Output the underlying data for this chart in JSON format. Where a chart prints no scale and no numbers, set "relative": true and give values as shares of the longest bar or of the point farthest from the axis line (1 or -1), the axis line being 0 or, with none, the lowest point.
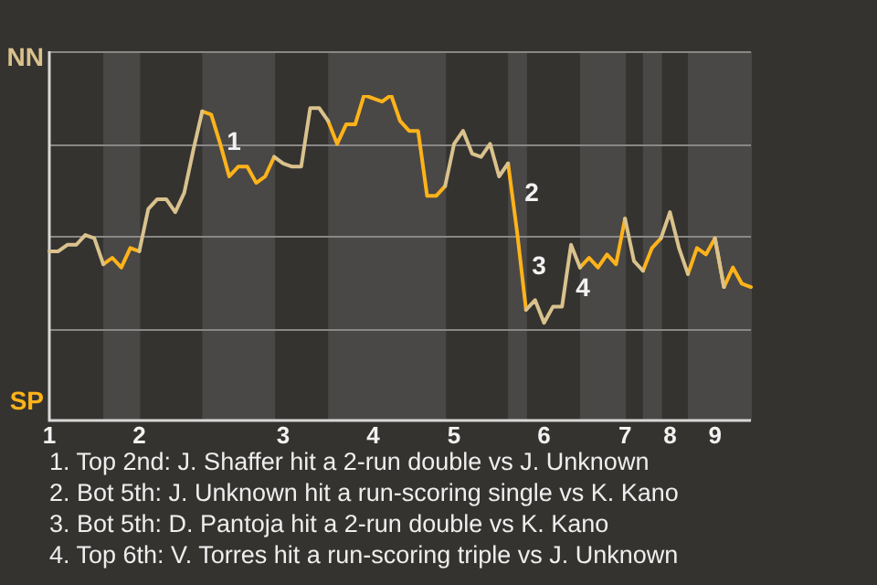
{
  "chart_data": {
    "type": "line",
    "relative": true,
    "categories": [
      "1",
      null,
      null,
      null,
      null,
      null,
      null,
      null,
      null,
      null,
      "2",
      null,
      null,
      null,
      null,
      null,
      null,
      null,
      null,
      null,
      null,
      null,
      null,
      null,
      null,
      null,
      "3",
      null,
      null,
      null,
      null,
      null,
      null,
      null,
      null,
      null,
      "4",
      null,
      null,
      null,
      null,
      null,
      null,
      null,
      null,
      "5",
      null,
      null,
      null,
      null,
      null,
      null,
      null,
      null,
      null,
      "6",
      null,
      null,
      null,
      null,
      null,
      null,
      null,
      null,
      "7",
      null,
      null,
      null,
      null,
      "8",
      null,
      null,
      null,
      null,
      "9",
      null,
      null,
      null,
      null
    ],
    "series": [
      {
        "name": "NN",
        "color": "#d9c28d",
        "values": [
          0.52,
          0.52,
          0.54,
          0.54,
          0.57,
          0.56,
          0.48,
          null,
          null,
          null,
          0.52,
          0.65,
          0.68,
          0.68,
          0.64,
          0.7,
          0.83,
          0.95,
          null,
          null,
          null,
          null,
          null,
          null,
          null,
          0.81,
          0.79,
          0.78,
          0.78,
          0.96,
          0.96,
          0.92,
          null,
          null,
          null,
          null,
          null,
          null,
          null,
          null,
          null,
          null,
          null,
          null,
          0.72,
          0.85,
          0.89,
          0.82,
          0.81,
          0.85,
          0.75,
          0.79,
          null,
          0.34,
          0.37,
          0.3,
          0.35,
          0.35,
          0.54,
          0.47,
          null,
          null,
          null,
          null,
          0.62,
          0.49,
          0.46,
          null,
          0.56,
          0.64,
          0.53,
          0.45,
          null,
          null,
          0.56,
          0.41,
          null,
          null,
          null
        ]
      },
      {
        "name": "SP",
        "color": "#ffb31a",
        "values": [
          null,
          null,
          null,
          null,
          null,
          null,
          0.48,
          0.5,
          0.47,
          0.53,
          0.52,
          null,
          null,
          null,
          null,
          null,
          null,
          0.95,
          0.94,
          0.85,
          0.75,
          0.78,
          0.78,
          0.73,
          0.75,
          0.81,
          null,
          null,
          null,
          null,
          null,
          0.92,
          0.85,
          0.91,
          0.91,
          1,
          0.99,
          0.98,
          1,
          0.92,
          0.89,
          0.89,
          0.69,
          0.69,
          0.72,
          null,
          null,
          null,
          null,
          null,
          null,
          0.79,
          0.58,
          0.34,
          null,
          null,
          null,
          null,
          null,
          0.47,
          0.5,
          0.47,
          0.51,
          0.48,
          0.62,
          null,
          0.46,
          0.53,
          0.56,
          null,
          null,
          0.45,
          0.53,
          0.51,
          0.56,
          0.41,
          0.47,
          0.42,
          0.41
        ]
      }
    ],
    "grid": "y",
    "marker": "none",
    "line_style": "solid",
    "annotations": [
      "1",
      "2",
      "3",
      "4",
      "1. Top 2nd: J. Shaffer hit a 2-run double vs J. Unknown",
      "2. Bot 5th: J. Unknown hit a run-scoring single vs K. Kano",
      "3. Bot 5th: D. Pantoja hit a 2-run double vs K. Kano",
      "4. Top 6th: V. Torres hit a run-scoring triple vs J. Unknown"
    ]
  }
}
